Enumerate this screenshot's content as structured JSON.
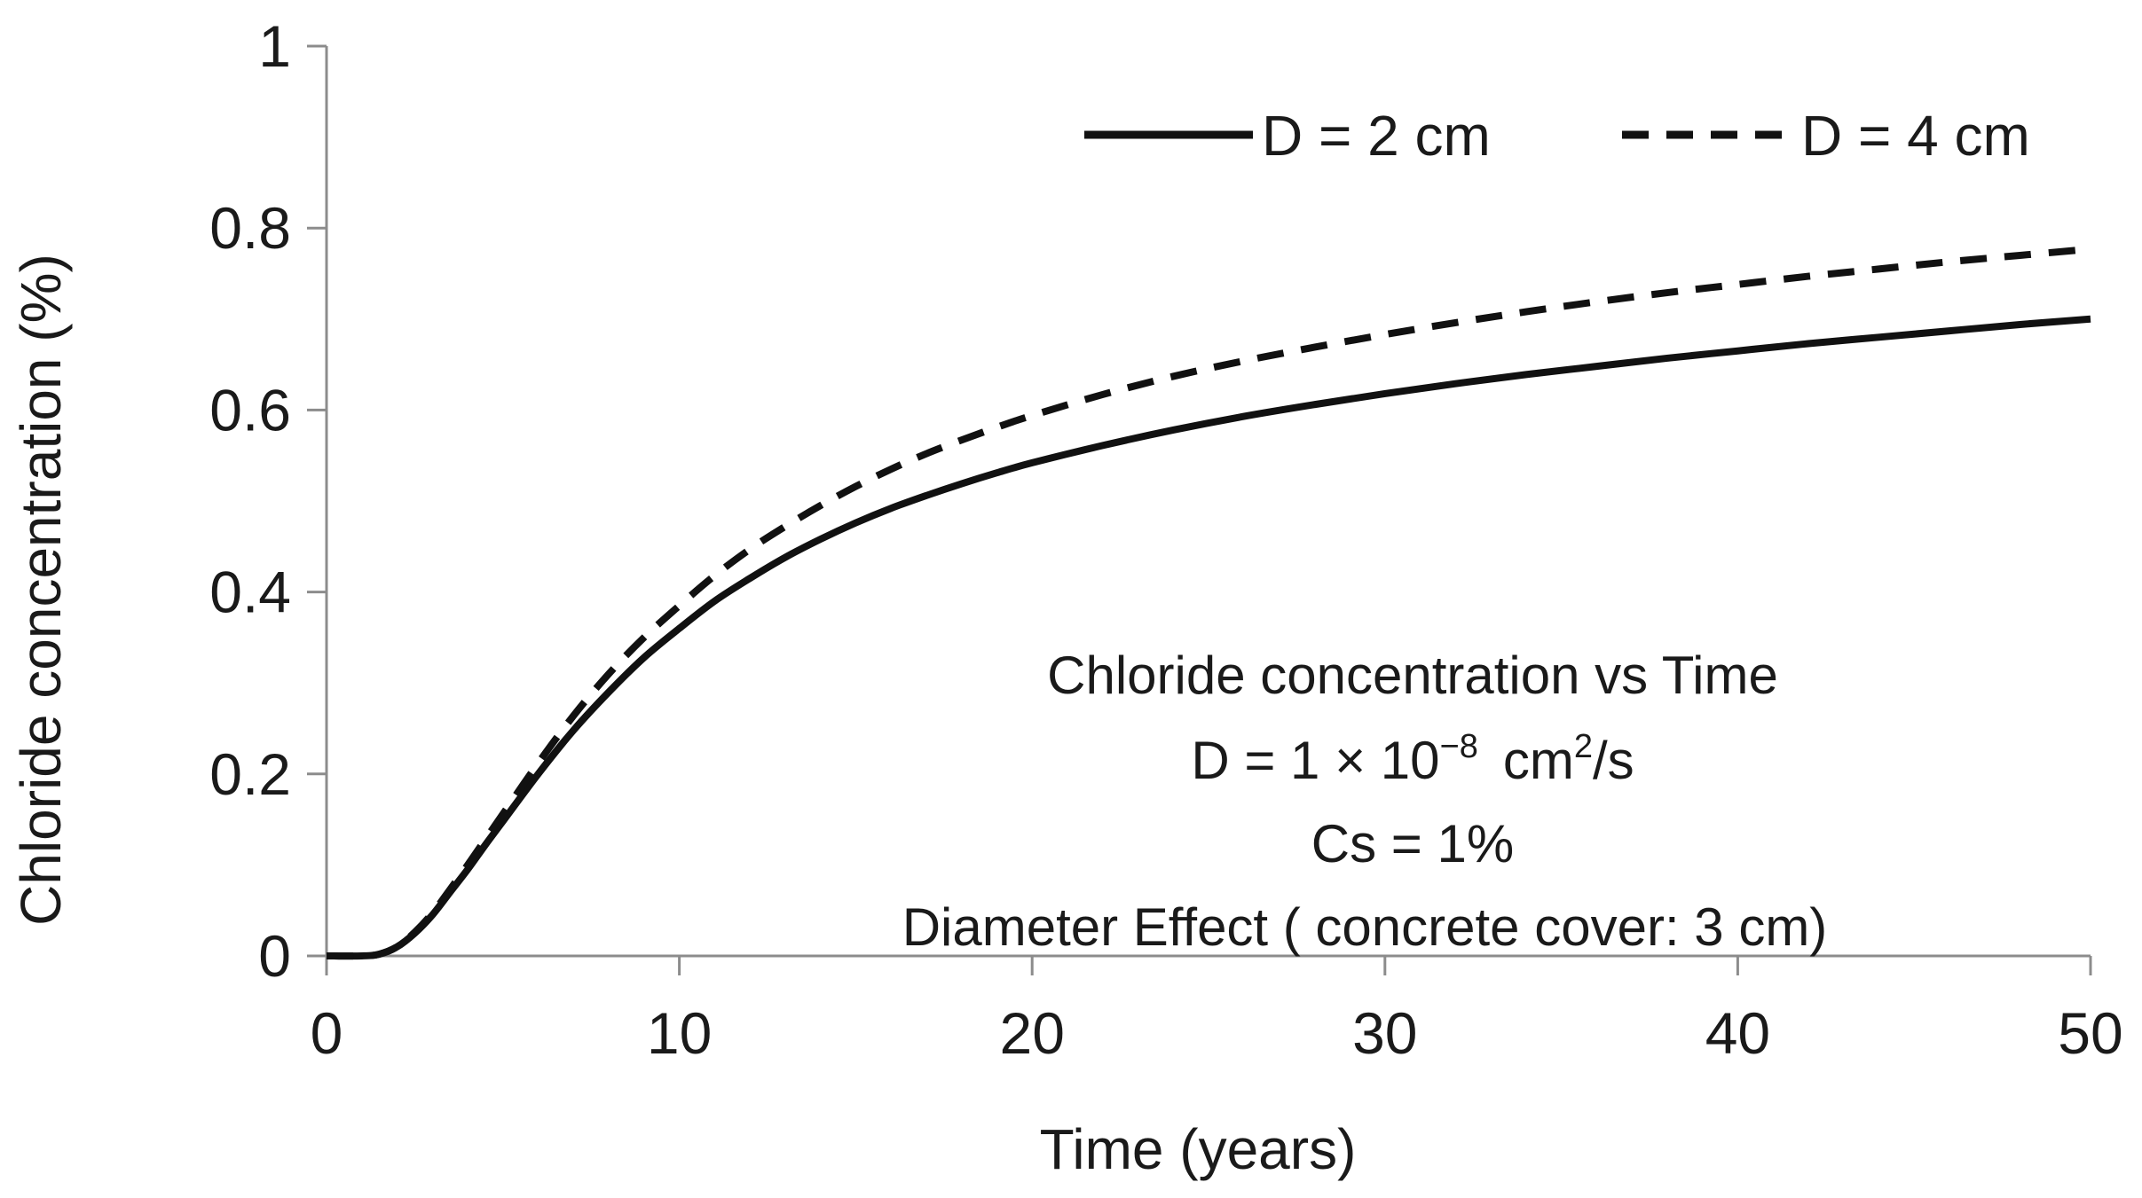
{
  "chart_data": {
    "type": "line",
    "title": "",
    "xlabel": "Time (years)",
    "ylabel": "Chloride concentration (%)",
    "xlim": [
      0,
      50
    ],
    "ylim": [
      0,
      1
    ],
    "x_ticks": [
      "0",
      "10",
      "20",
      "30",
      "40",
      "50"
    ],
    "y_ticks": [
      "0",
      "0.2",
      "0.4",
      "0.6",
      "0.8",
      "1"
    ],
    "grid": false,
    "legend_position": "top-right",
    "x": [
      0,
      1,
      1.5,
      2,
      2.5,
      3,
      3.5,
      4,
      4.5,
      5,
      6,
      7,
      8,
      9,
      10,
      11,
      12,
      13,
      14,
      15,
      16,
      17,
      18,
      19,
      20,
      22,
      24,
      26,
      28,
      30,
      32,
      34,
      36,
      38,
      40,
      42,
      44,
      46,
      48,
      50
    ],
    "series": [
      {
        "name": "D = 2 cm",
        "style": "solid",
        "values": [
          0,
          0,
          0.002,
          0.01,
          0.025,
          0.045,
          0.07,
          0.095,
          0.122,
          0.148,
          0.2,
          0.248,
          0.29,
          0.328,
          0.36,
          0.39,
          0.415,
          0.438,
          0.458,
          0.476,
          0.492,
          0.506,
          0.519,
          0.531,
          0.542,
          0.561,
          0.578,
          0.593,
          0.606,
          0.618,
          0.629,
          0.639,
          0.648,
          0.657,
          0.665,
          0.673,
          0.68,
          0.687,
          0.694,
          0.7
        ]
      },
      {
        "name": "D = 4 cm",
        "style": "dashed",
        "values": [
          0,
          0,
          0.002,
          0.01,
          0.026,
          0.047,
          0.073,
          0.1,
          0.128,
          0.156,
          0.212,
          0.264,
          0.31,
          0.35,
          0.385,
          0.418,
          0.447,
          0.472,
          0.495,
          0.516,
          0.535,
          0.552,
          0.567,
          0.581,
          0.594,
          0.617,
          0.637,
          0.654,
          0.669,
          0.683,
          0.696,
          0.708,
          0.719,
          0.729,
          0.738,
          0.747,
          0.755,
          0.763,
          0.77,
          0.777
        ]
      }
    ],
    "annotations": {
      "line1": "Chloride concentration vs Time",
      "line2_prefix": "D = 1 × 10",
      "line2_exp": "−8",
      "line2_unit": "cm",
      "line2_unit_exp": "2",
      "line2_suffix": "/s",
      "line3": "Cs = 1%",
      "line4": "Diameter Effect ( concrete cover: 3 cm)"
    }
  },
  "colors": {
    "line": "#111111",
    "axis": "#8c8c8c",
    "text": "#1a1a1a"
  }
}
